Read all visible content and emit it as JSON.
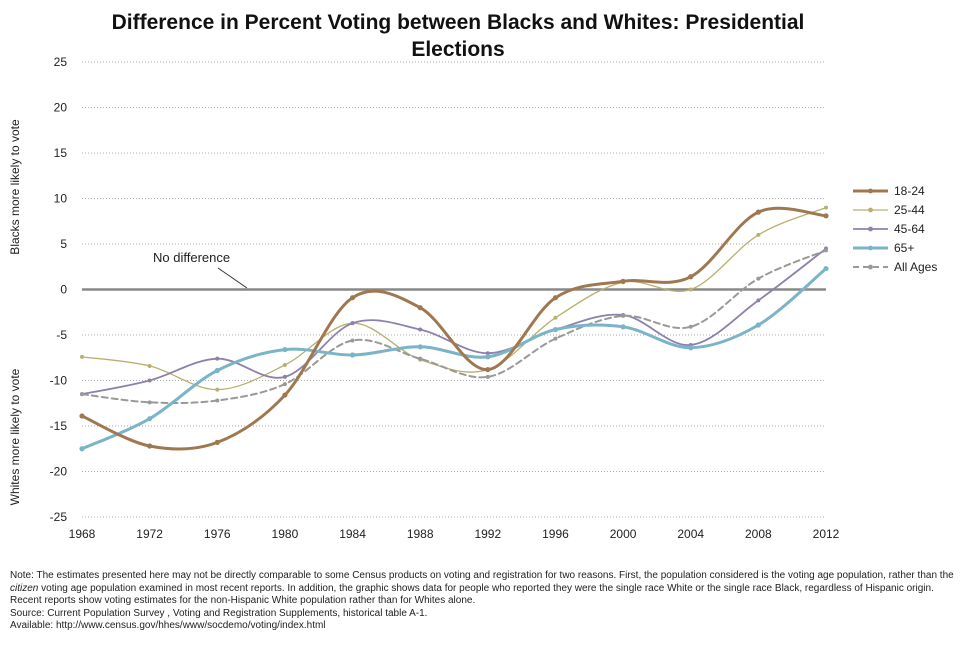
{
  "chart_data": {
    "type": "line",
    "title_line1": "Difference in Percent Voting between Blacks and Whites: Presidential",
    "title_line2": "Elections",
    "ylabel_top": "Blacks more likely to vote",
    "ylabel_bottom": "Whites more likely to vote",
    "ylim": [
      -25,
      25
    ],
    "yticks": [
      25,
      20,
      15,
      10,
      5,
      0,
      -5,
      -10,
      -15,
      -20,
      -25
    ],
    "x": [
      1968,
      1972,
      1976,
      1980,
      1984,
      1988,
      1992,
      1996,
      2000,
      2004,
      2008,
      2012
    ],
    "grid": "horizontal-dotted",
    "legend_position": "right",
    "annotation": "No difference",
    "series": [
      {
        "name": "18-24",
        "color": "#a07850",
        "width": 3,
        "dash": "",
        "values": [
          -13.9,
          -17.2,
          -16.8,
          -11.6,
          -0.9,
          -2.0,
          -8.8,
          -0.9,
          0.9,
          1.4,
          8.5,
          8.1
        ]
      },
      {
        "name": "25-44",
        "color": "#b8b070",
        "width": 1.3,
        "dash": "",
        "values": [
          -7.4,
          -8.4,
          -11.0,
          -8.3,
          -3.7,
          -7.7,
          -8.8,
          -3.1,
          0.8,
          0.0,
          6.0,
          9.0
        ]
      },
      {
        "name": "45-64",
        "color": "#8e80ac",
        "width": 1.8,
        "dash": "",
        "values": [
          -11.5,
          -10.0,
          -7.6,
          -9.6,
          -3.7,
          -4.4,
          -7.0,
          -4.4,
          -2.8,
          -6.1,
          -1.2,
          4.5
        ]
      },
      {
        "name": "65+",
        "color": "#7bb4c8",
        "width": 3,
        "dash": "",
        "values": [
          -17.5,
          -14.2,
          -8.9,
          -6.6,
          -7.2,
          -6.3,
          -7.4,
          -4.4,
          -4.1,
          -6.4,
          -3.9,
          2.3
        ]
      },
      {
        "name": "All Ages",
        "color": "#999999",
        "width": 2,
        "dash": "6,4",
        "values": [
          -11.5,
          -12.4,
          -12.2,
          -10.4,
          -5.6,
          -7.6,
          -9.6,
          -5.4,
          -2.9,
          -4.1,
          1.2,
          4.3
        ]
      }
    ]
  },
  "notes": {
    "note_part1": "Note: The estimates presented here may not be directly comparable to some Census products on voting and registration for two reasons. First, the population considered is the voting age population, rather than the ",
    "note_italic": "citizen",
    "note_part2": " voting age population examined in most recent reports. In addition, the graphic shows data for people who reported they were the single race White or the single race Black, regardless of Hispanic origin. Recent reports show voting estimates for the non-Hispanic White population rather than for Whites alone.",
    "source": "Source: Current Population Survey , Voting and  Registration Supplements, historical table A-1.",
    "available": "Available: http://www.census.gov/hhes/www/socdemo/voting/index.html"
  }
}
